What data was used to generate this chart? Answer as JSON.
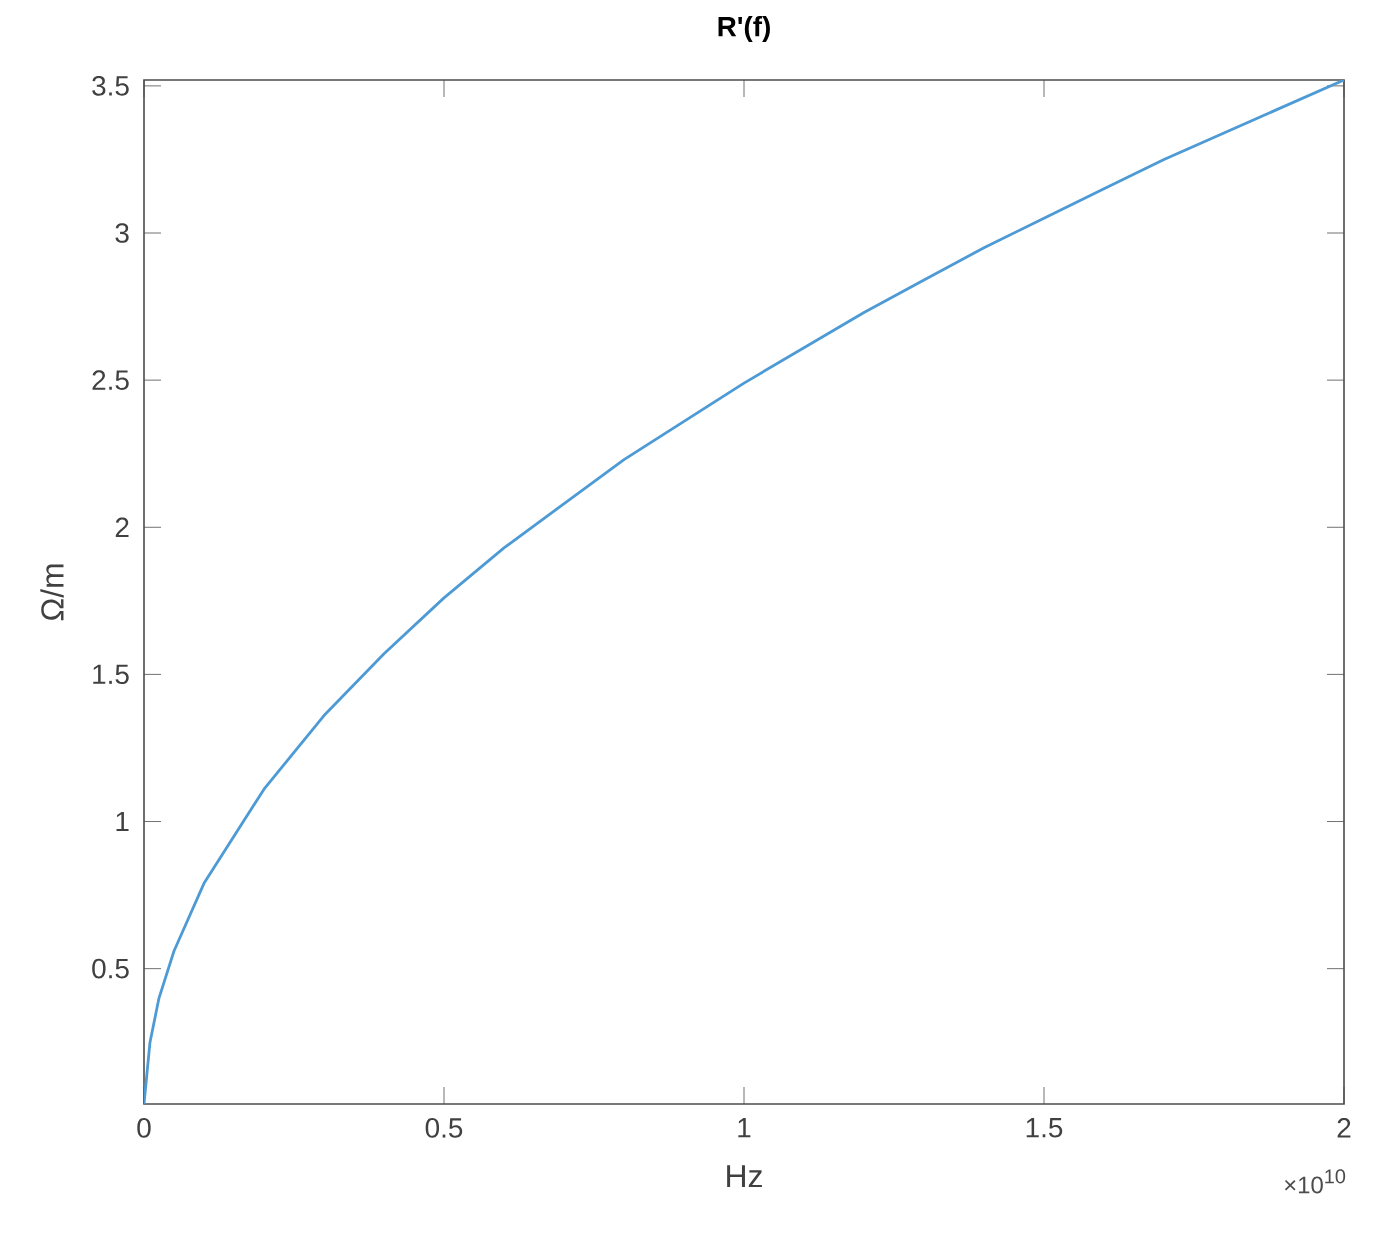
{
  "chart_data": {
    "type": "line",
    "title": "R'(f)",
    "xlabel": "Hz",
    "ylabel": "Ω/m",
    "x": [
      0,
      0.01,
      0.025,
      0.05,
      0.1,
      0.2,
      0.3,
      0.4,
      0.5,
      0.6,
      0.7,
      0.8,
      0.9,
      1,
      1.1,
      1.2,
      1.3,
      1.4,
      1.5,
      1.6,
      1.7,
      1.8,
      1.9,
      2
    ],
    "series": [
      {
        "color": "#4d9ad5",
        "values": [
          0.04,
          0.25,
          0.4,
          0.56,
          0.79,
          1.11,
          1.36,
          1.57,
          1.76,
          1.93,
          2.08,
          2.23,
          2.36,
          2.49,
          2.61,
          2.73,
          2.84,
          2.95,
          3.05,
          3.15,
          3.25,
          3.34,
          3.43,
          3.52
        ]
      }
    ],
    "xlim": [
      0,
      2
    ],
    "ylim": [
      0.04,
      3.52
    ],
    "xticks": [
      0,
      0.5,
      1,
      1.5,
      2
    ],
    "yticks": [
      0.5,
      1,
      1.5,
      2,
      2.5,
      3,
      3.5
    ],
    "annotations": [
      "×10$^{10}$"
    ]
  }
}
